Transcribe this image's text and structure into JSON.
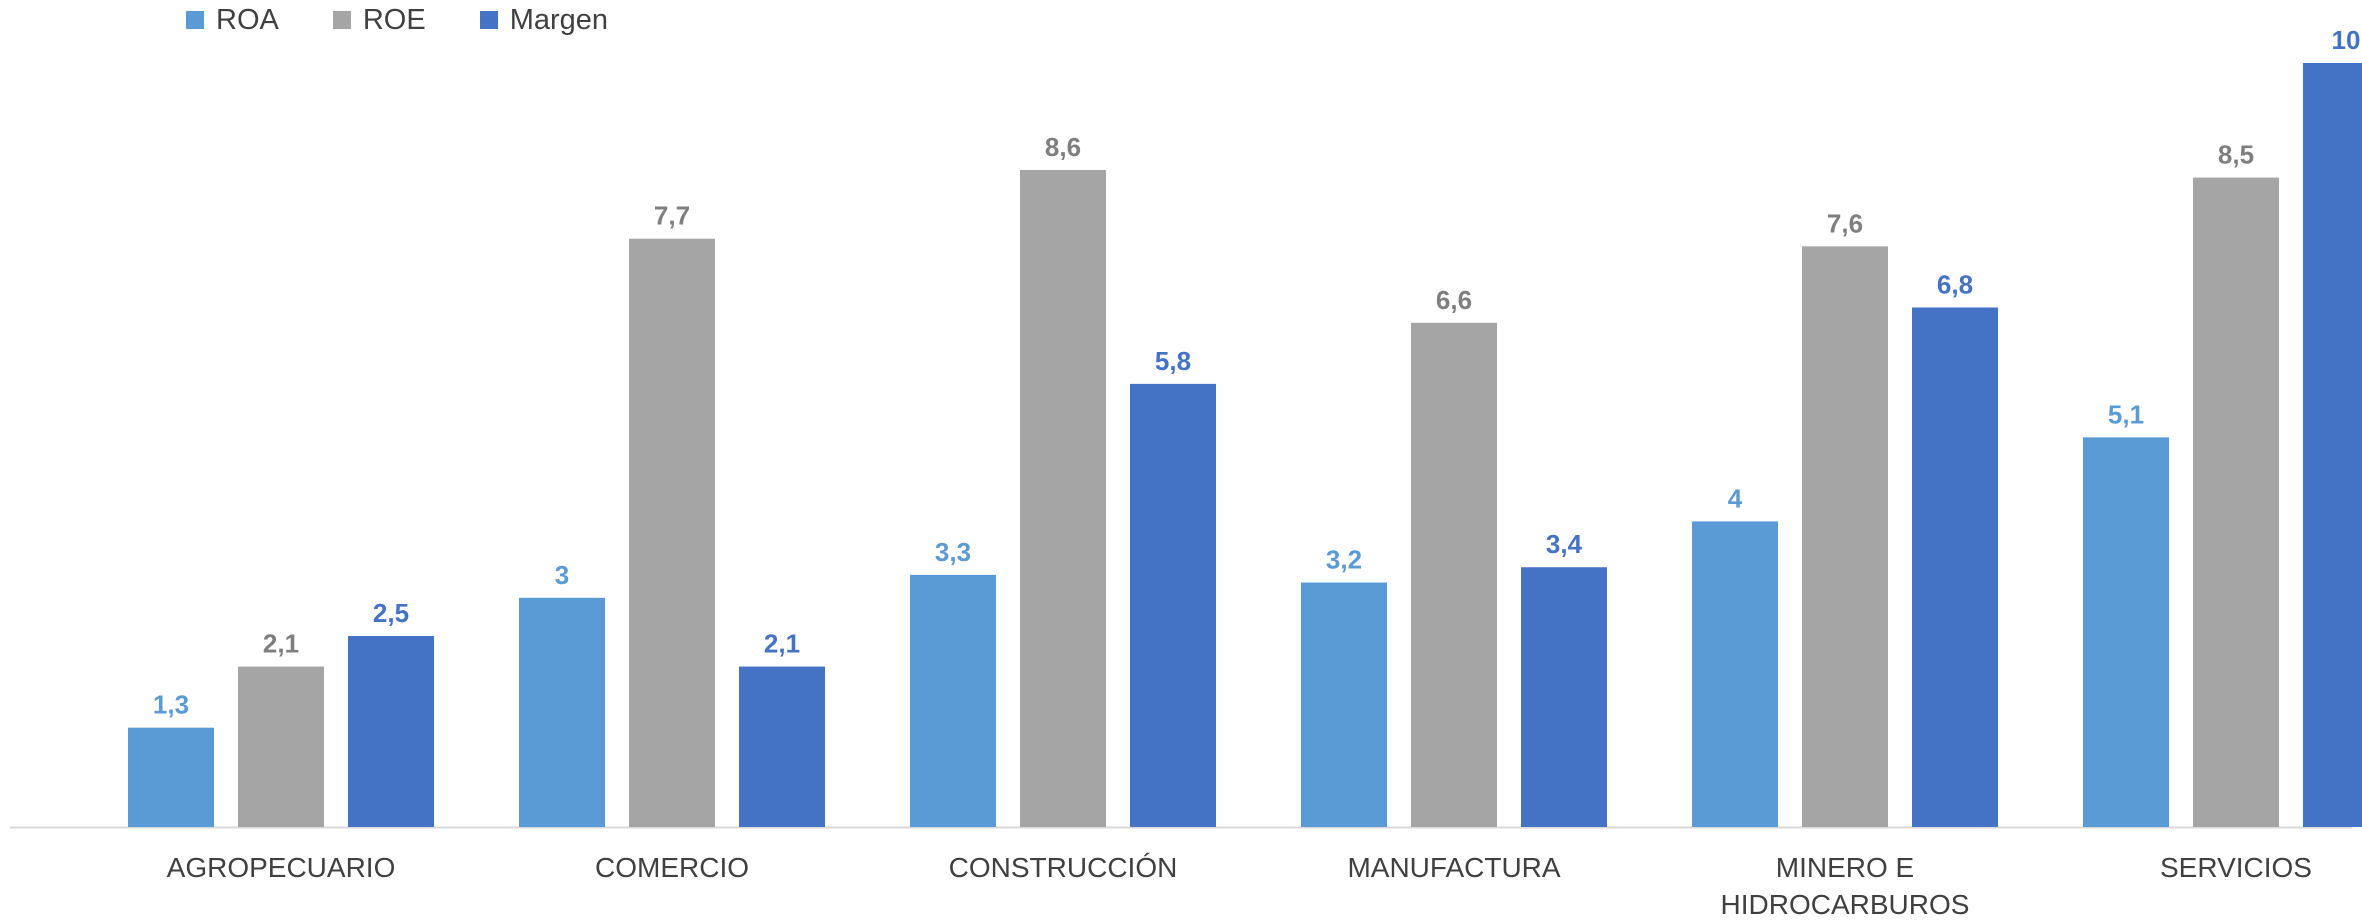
{
  "chart_data": {
    "type": "bar",
    "categories": [
      "AGROPECUARIO",
      "COMERCIO",
      "CONSTRUCCIÓN",
      "MANUFACTURA",
      "MINERO E HIDROCARBUROS",
      "SERVICIOS"
    ],
    "category_lines": [
      [
        "AGROPECUARIO"
      ],
      [
        "COMERCIO"
      ],
      [
        "CONSTRUCCIÓN"
      ],
      [
        "MANUFACTURA"
      ],
      [
        "MINERO E",
        "HIDROCARBUROS"
      ],
      [
        "SERVICIOS"
      ]
    ],
    "series": [
      {
        "name": "ROA",
        "color": "#5B9BD5",
        "label_color": "#5B9BD5",
        "values": [
          1.3,
          3,
          3.3,
          3.2,
          4,
          5.1
        ]
      },
      {
        "name": "ROE",
        "color": "#A5A5A5",
        "label_color": "#7F7F7F",
        "values": [
          2.1,
          7.7,
          8.6,
          6.6,
          7.6,
          8.5
        ]
      },
      {
        "name": "Margen",
        "color": "#4472C4",
        "label_color": "#4472C4",
        "values": [
          2.5,
          2.1,
          5.8,
          3.4,
          6.8,
          10
        ]
      }
    ],
    "data_labels": [
      [
        "1,3",
        "3",
        "3,3",
        "3,2",
        "4",
        "5,1"
      ],
      [
        "2,1",
        "7,7",
        "8,6",
        "6,6",
        "7,6",
        "8,5"
      ],
      [
        "2,5",
        "2,1",
        "5,8",
        "3,4",
        "6,8",
        "10"
      ]
    ],
    "title": "",
    "xlabel": "",
    "ylabel": "",
    "ylim": [
      0,
      10
    ],
    "grid": false,
    "legend_position": "top-left",
    "axis_color": "#D9D9D9"
  }
}
